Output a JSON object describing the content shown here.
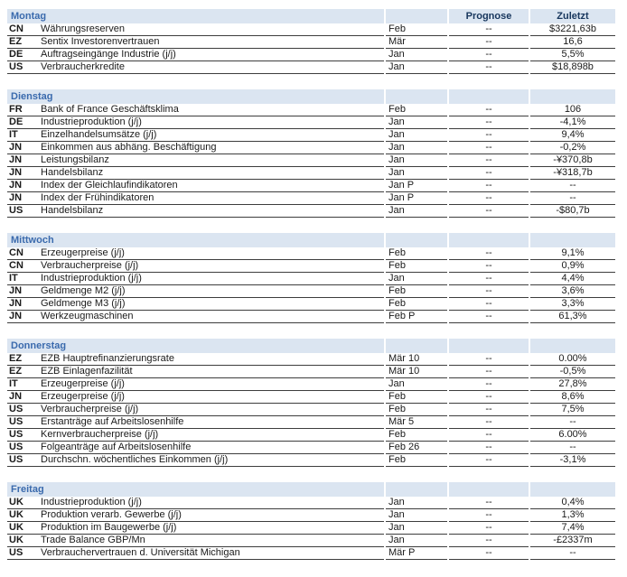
{
  "colors": {
    "header_band_bg": "#dbe5f1",
    "day_title_text": "#3a6aad",
    "column_header_text": "#17365d",
    "body_text": "#1a1a1a",
    "row_line": "#3d3d3d"
  },
  "column_headers": {
    "prognose": "Prognose",
    "zuletzt": "Zuletzt"
  },
  "sections": [
    {
      "day": "Montag",
      "show_column_headers": true,
      "rows": [
        {
          "country": "CN",
          "event": "Währungsreserven",
          "period": "Feb",
          "prognose": "--",
          "zuletzt": "$3221,63b"
        },
        {
          "country": "EZ",
          "event": "Sentix Investorenvertrauen",
          "period": "Mär",
          "prognose": "--",
          "zuletzt": "16,6"
        },
        {
          "country": "DE",
          "event": "Auftragseingänge Industrie (j/j)",
          "period": "Jan",
          "prognose": "--",
          "zuletzt": "5,5%"
        },
        {
          "country": "US",
          "event": "Verbraucherkredite",
          "period": "Jan",
          "prognose": "--",
          "zuletzt": "$18,898b"
        }
      ]
    },
    {
      "day": "Dienstag",
      "show_column_headers": false,
      "rows": [
        {
          "country": "FR",
          "event": "Bank of France Geschäftsklima",
          "period": "Feb",
          "prognose": "--",
          "zuletzt": "106"
        },
        {
          "country": "DE",
          "event": "Industrieproduktion (j/j)",
          "period": "Jan",
          "prognose": "--",
          "zuletzt": "-4,1%"
        },
        {
          "country": "IT",
          "event": "Einzelhandelsumsätze (j/j)",
          "period": "Jan",
          "prognose": "--",
          "zuletzt": "9,4%"
        },
        {
          "country": "JN",
          "event": "Einkommen aus abhäng. Beschäftigung",
          "period": "Jan",
          "prognose": "--",
          "zuletzt": "-0,2%"
        },
        {
          "country": "JN",
          "event": "Leistungsbilanz",
          "period": "Jan",
          "prognose": "--",
          "zuletzt": "-¥370,8b"
        },
        {
          "country": "JN",
          "event": "Handelsbilanz",
          "period": "Jan",
          "prognose": "--",
          "zuletzt": "-¥318,7b"
        },
        {
          "country": "JN",
          "event": "Index der Gleichlaufindikatoren",
          "period": "Jan P",
          "prognose": "--",
          "zuletzt": "--"
        },
        {
          "country": "JN",
          "event": "Index der Frühindikatoren",
          "period": "Jan P",
          "prognose": "--",
          "zuletzt": "--"
        },
        {
          "country": "US",
          "event": "Handelsbilanz",
          "period": "Jan",
          "prognose": "--",
          "zuletzt": "-$80,7b"
        }
      ]
    },
    {
      "day": "Mittwoch",
      "show_column_headers": false,
      "rows": [
        {
          "country": "CN",
          "event": "Erzeugerpreise (j/j)",
          "period": "Feb",
          "prognose": "--",
          "zuletzt": "9,1%"
        },
        {
          "country": "CN",
          "event": "Verbraucherpreise (j/j)",
          "period": "Feb",
          "prognose": "--",
          "zuletzt": "0,9%"
        },
        {
          "country": "IT",
          "event": "Industrieproduktion (j/j)",
          "period": "Jan",
          "prognose": "--",
          "zuletzt": "4,4%"
        },
        {
          "country": "JN",
          "event": "Geldmenge M2 (j/j)",
          "period": "Feb",
          "prognose": "--",
          "zuletzt": "3,6%"
        },
        {
          "country": "JN",
          "event": "Geldmenge M3 (j/j)",
          "period": "Feb",
          "prognose": "--",
          "zuletzt": "3,3%"
        },
        {
          "country": "JN",
          "event": "Werkzeugmaschinen",
          "period": "Feb P",
          "prognose": "--",
          "zuletzt": "61,3%"
        }
      ]
    },
    {
      "day": "Donnerstag",
      "show_column_headers": false,
      "rows": [
        {
          "country": "EZ",
          "event": "EZB Hauptrefinanzierungsrate",
          "period": "Mär 10",
          "prognose": "--",
          "zuletzt": "0.00%"
        },
        {
          "country": "EZ",
          "event": "EZB Einlagenfazilität",
          "period": "Mär 10",
          "prognose": "--",
          "zuletzt": "-0,5%"
        },
        {
          "country": "IT",
          "event": "Erzeugerpreise (j/j)",
          "period": "Jan",
          "prognose": "--",
          "zuletzt": "27,8%"
        },
        {
          "country": "JN",
          "event": "Erzeugerpreise (j/j)",
          "period": "Feb",
          "prognose": "--",
          "zuletzt": "8,6%"
        },
        {
          "country": "US",
          "event": "Verbraucherpreise (j/j)",
          "period": "Feb",
          "prognose": "--",
          "zuletzt": "7,5%"
        },
        {
          "country": "US",
          "event": "Erstanträge auf Arbeitslosenhilfe",
          "period": "Mär 5",
          "prognose": "--",
          "zuletzt": "--"
        },
        {
          "country": "US",
          "event": "Kernverbraucherpreise (j/j)",
          "period": "Feb",
          "prognose": "--",
          "zuletzt": "6.00%"
        },
        {
          "country": "US",
          "event": "Folgeanträge auf Arbeitslosenhilfe",
          "period": "Feb 26",
          "prognose": "--",
          "zuletzt": "--"
        },
        {
          "country": "US",
          "event": "Durchschn. wöchentliches Einkommen (j/j)",
          "period": "Feb",
          "prognose": "--",
          "zuletzt": "-3,1%"
        }
      ]
    },
    {
      "day": "Freitag",
      "show_column_headers": false,
      "rows": [
        {
          "country": "UK",
          "event": "Industrieproduktion (j/j)",
          "period": "Jan",
          "prognose": "--",
          "zuletzt": "0,4%"
        },
        {
          "country": "UK",
          "event": "Produktion verarb. Gewerbe (j/j)",
          "period": "Jan",
          "prognose": "--",
          "zuletzt": "1,3%"
        },
        {
          "country": "UK",
          "event": "Produktion im Baugewerbe (j/j)",
          "period": "Jan",
          "prognose": "--",
          "zuletzt": "7,4%"
        },
        {
          "country": "UK",
          "event": "Trade Balance GBP/Mn",
          "period": "Jan",
          "prognose": "--",
          "zuletzt": "-£2337m"
        },
        {
          "country": "US",
          "event": "Verbrauchervertrauen d. Universität Michigan",
          "period": "Mär P",
          "prognose": "--",
          "zuletzt": "--"
        }
      ]
    }
  ]
}
